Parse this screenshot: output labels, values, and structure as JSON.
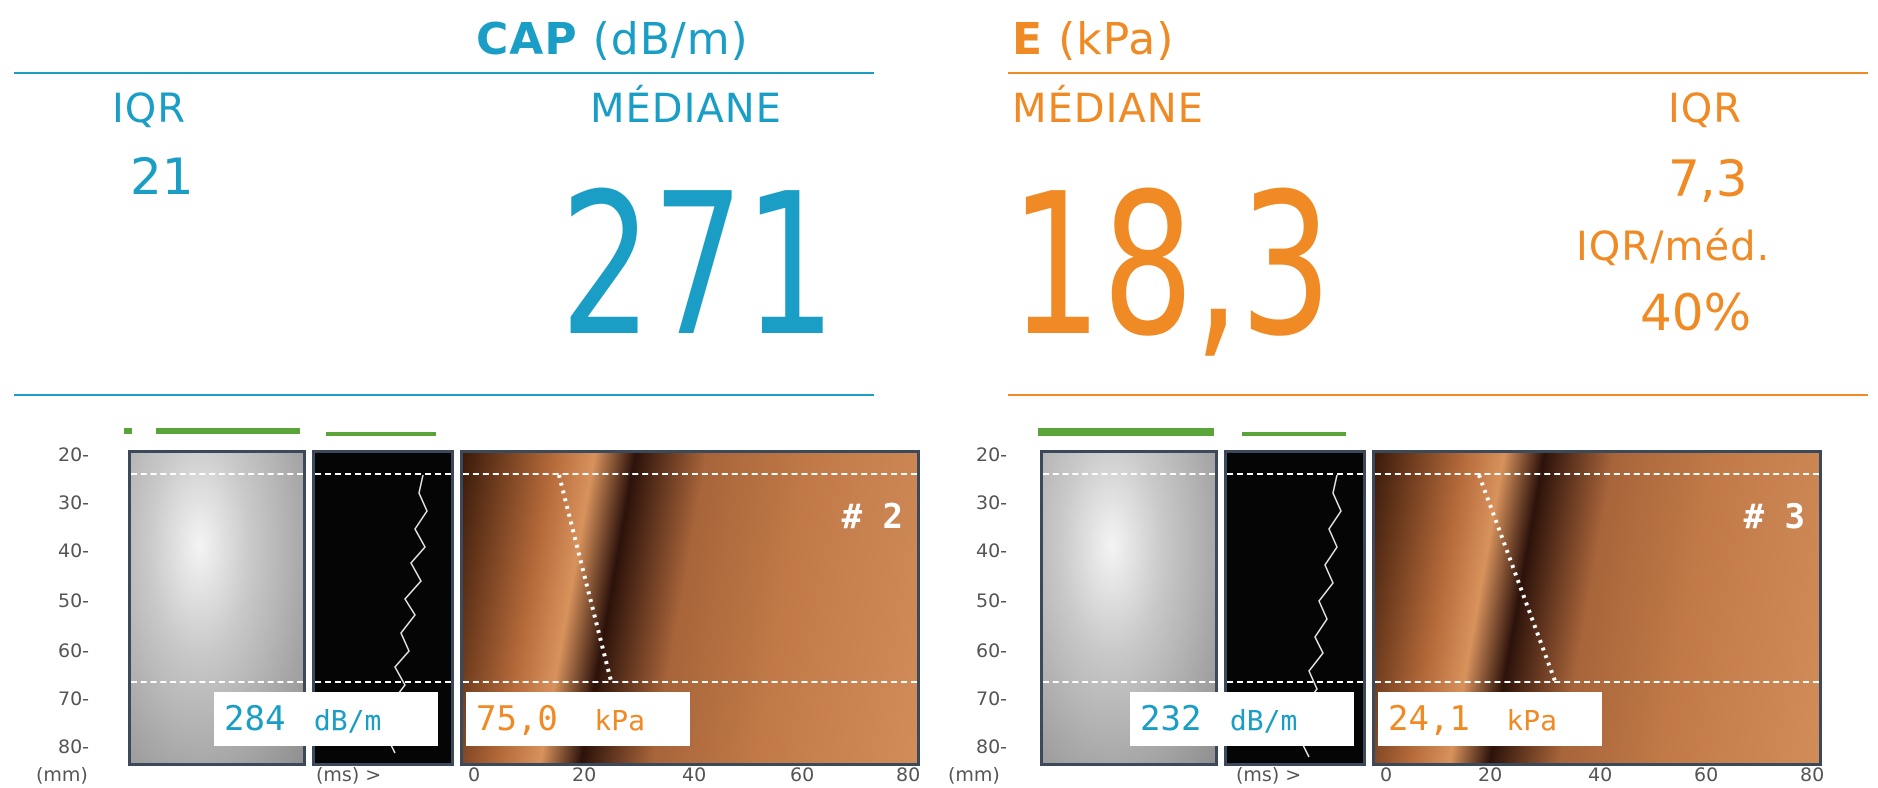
{
  "cap": {
    "title_bold": "CAP",
    "title_unit": "(dB/m)",
    "iqr_label": "IQR",
    "iqr_value": "21",
    "median_label": "MÉDIANE",
    "median_value": "271"
  },
  "e": {
    "title_bold": "E",
    "title_unit": "(kPa)",
    "median_label": "MÉDIANE",
    "median_value": "18,3",
    "iqr_label": "IQR",
    "iqr_value": "7,3",
    "ratio_label": "IQR/méd.",
    "ratio_value": "40%"
  },
  "colors": {
    "teal": "#1a9ec6",
    "orange": "#ef8a25",
    "green": "#5aa43a"
  },
  "measurements": [
    {
      "depth_ticks": [
        "20-",
        "30-",
        "40-",
        "50-",
        "60-",
        "70-",
        "80-"
      ],
      "cap_value": "284",
      "cap_unit": "dB/m",
      "e_value": "75,0",
      "e_unit": "kPa",
      "index": "# 2",
      "x_ticks": [
        "0",
        "20",
        "40",
        "60",
        "80"
      ],
      "mm_label": "(mm)",
      "ms_label": "(ms) >"
    },
    {
      "depth_ticks": [
        "20-",
        "30-",
        "40-",
        "50-",
        "60-",
        "70-",
        "80-"
      ],
      "cap_value": "232",
      "cap_unit": "dB/m",
      "e_value": "24,1",
      "e_unit": "kPa",
      "index": "# 3",
      "x_ticks": [
        "0",
        "20",
        "40",
        "60",
        "80"
      ],
      "mm_label": "(mm)",
      "ms_label": "(ms) >"
    }
  ]
}
